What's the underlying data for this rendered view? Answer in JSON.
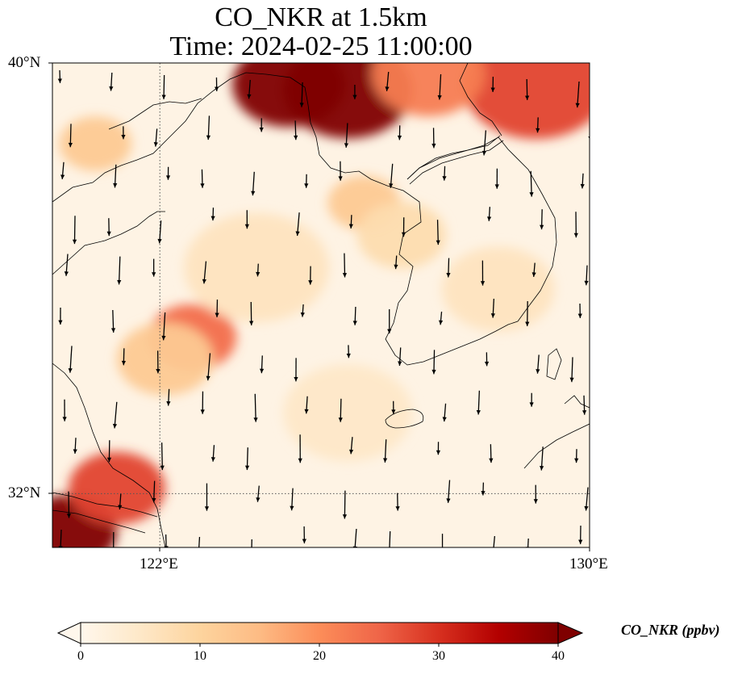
{
  "title": {
    "line1": "CO_NKR at 1.5km",
    "line2": "Time: 2024-02-25 11:00:00"
  },
  "map": {
    "lat_range": [
      31.0,
      40.0
    ],
    "lon_range": [
      120.0,
      130.0
    ],
    "gridlines": {
      "lat": 32,
      "lon": 122,
      "style": "dotted"
    },
    "lat_labels": [
      "40°N",
      "32°N"
    ],
    "lon_labels": [
      "122°E",
      "130°E"
    ],
    "colormap": "OrRd"
  },
  "colorbar": {
    "label": "CO_NKR (ppbv)",
    "ticks": [
      "0",
      "10",
      "20",
      "30",
      "40"
    ],
    "range": [
      0,
      40
    ],
    "extend": "both"
  },
  "chart_data": {
    "type": "heatmap",
    "variable": "CO_NKR",
    "unit": "ppbv",
    "level": "1.5km",
    "time": "2024-02-25 11:00:00",
    "vmin": 0,
    "vmax": 40,
    "wind_direction": "mostly southward (northerly winds)",
    "hotspots": [
      {
        "lon": 124.4,
        "lat": 39.6,
        "value": 40
      },
      {
        "lon": 125.5,
        "lat": 39.5,
        "value": 40
      },
      {
        "lon": 129.0,
        "lat": 39.6,
        "value": 28
      },
      {
        "lon": 127.0,
        "lat": 39.8,
        "value": 22
      },
      {
        "lon": 120.3,
        "lat": 31.3,
        "value": 40
      },
      {
        "lon": 121.2,
        "lat": 32.1,
        "value": 28
      },
      {
        "lon": 122.6,
        "lat": 34.9,
        "value": 24
      },
      {
        "lon": 122.1,
        "lat": 34.5,
        "value": 12
      },
      {
        "lon": 120.8,
        "lat": 38.5,
        "value": 12
      },
      {
        "lon": 125.8,
        "lat": 37.4,
        "value": 12
      },
      {
        "lon": 126.5,
        "lat": 36.8,
        "value": 8
      },
      {
        "lon": 128.3,
        "lat": 35.8,
        "value": 6
      },
      {
        "lon": 123.8,
        "lat": 36.2,
        "value": 6
      },
      {
        "lon": 125.5,
        "lat": 33.5,
        "value": 5
      }
    ]
  }
}
